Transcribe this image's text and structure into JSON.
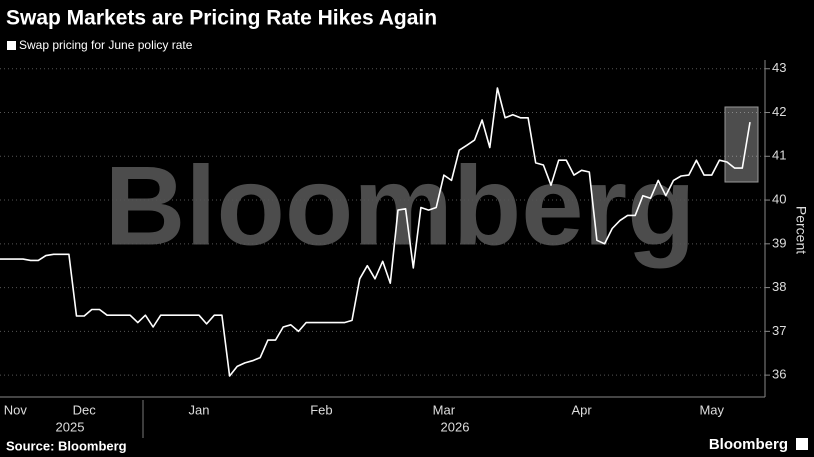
{
  "chart_data": {
    "type": "line",
    "title": "Swap Markets are Pricing Rate Hikes Again",
    "watermark": "Bloomberg",
    "source": "Source: Bloomberg",
    "logo": "Bloomberg",
    "y_label": "Percent",
    "year_labels": [
      "2025",
      "2026"
    ],
    "categories": [
      null,
      null,
      "Nov",
      null,
      null,
      null,
      null,
      null,
      null,
      null,
      null,
      "Dec",
      null,
      null,
      null,
      null,
      null,
      null,
      null,
      null,
      null,
      null,
      null,
      null,
      null,
      null,
      "Jan",
      null,
      null,
      null,
      null,
      null,
      null,
      null,
      null,
      null,
      null,
      null,
      null,
      null,
      null,
      null,
      "Feb",
      null,
      null,
      null,
      null,
      null,
      null,
      null,
      null,
      null,
      null,
      null,
      null,
      null,
      null,
      null,
      "Mar",
      null,
      null,
      null,
      null,
      null,
      null,
      null,
      null,
      null,
      null,
      null,
      null,
      null,
      null,
      null,
      null,
      null,
      "Apr",
      null,
      null,
      null,
      null,
      null,
      null,
      null,
      null,
      null,
      null,
      null,
      null,
      null,
      null,
      null,
      null,
      "May",
      null,
      null,
      null,
      null,
      null
    ],
    "series": [
      {
        "name": "Swap pricing for June policy rate",
        "color": "#ffffff",
        "values": [
          38.65,
          38.65,
          38.65,
          38.65,
          38.62,
          38.62,
          38.73,
          38.76,
          38.76,
          38.76,
          37.35,
          37.35,
          37.5,
          37.5,
          37.37,
          37.37,
          37.37,
          37.37,
          37.2,
          37.37,
          37.1,
          37.37,
          37.37,
          37.37,
          37.37,
          37.37,
          37.37,
          37.17,
          37.37,
          37.37,
          35.98,
          36.2,
          36.28,
          36.33,
          36.4,
          36.8,
          36.8,
          37.1,
          37.15,
          37.0,
          37.2,
          37.2,
          37.2,
          37.2,
          37.2,
          37.2,
          37.25,
          38.2,
          38.5,
          38.2,
          38.6,
          38.1,
          39.77,
          39.8,
          38.45,
          39.83,
          39.77,
          39.83,
          40.57,
          40.45,
          41.14,
          41.25,
          41.37,
          41.83,
          41.2,
          42.56,
          41.88,
          41.95,
          41.88,
          41.88,
          40.85,
          40.8,
          40.34,
          40.91,
          40.91,
          40.57,
          40.68,
          40.64,
          39.08,
          39.0,
          39.35,
          39.53,
          39.65,
          39.65,
          40.1,
          40.04,
          40.45,
          40.1,
          40.45,
          40.55,
          40.57,
          40.91,
          40.57,
          40.57,
          40.91,
          40.87,
          40.73,
          40.73,
          41.78
        ]
      }
    ],
    "ylim": [
      35.5,
      43.2
    ],
    "yticks": [
      36,
      37,
      38,
      39,
      40,
      41,
      42,
      43
    ],
    "grid": true
  }
}
